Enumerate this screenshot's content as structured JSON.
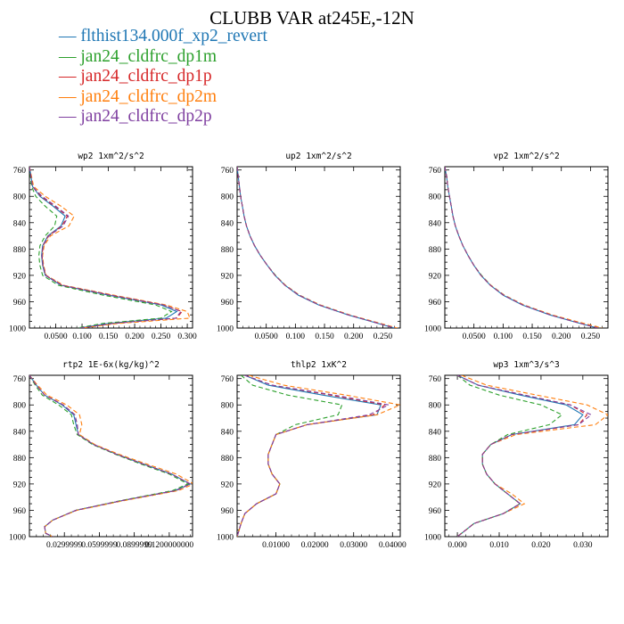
{
  "title": "CLUBB VAR at245E,-12N",
  "legend": [
    {
      "label": "flthist134.000f_xp2_revert",
      "color": "#1f77b4",
      "dash": ""
    },
    {
      "label": "jan24_cldfrc_dp1m",
      "color": "#2ca02c",
      "dash": "5,3"
    },
    {
      "label": "jan24_cldfrc_dp1p",
      "color": "#d62728",
      "dash": "5,3"
    },
    {
      "label": "jan24_cldfrc_dp2m",
      "color": "#ff7f0e",
      "dash": "5,3"
    },
    {
      "label": "jan24_cldfrc_dp2p",
      "color": "#7f3fa0",
      "dash": "5,3"
    }
  ],
  "chart_data": [
    {
      "type": "line",
      "title": "wp2  1xm^2/s^2",
      "ylim": [
        1000,
        755
      ],
      "xlim": [
        0.0,
        0.31
      ],
      "yticks": [
        "760",
        "800",
        "840",
        "880",
        "920",
        "960",
        "1000"
      ],
      "xticks": [
        "0.0500",
        "0.100",
        "0.150",
        "0.200",
        "0.250",
        "0.300"
      ],
      "x_tick_values": [
        0.05,
        0.1,
        0.15,
        0.2,
        0.25,
        0.3
      ],
      "y": [
        755,
        770,
        785,
        800,
        815,
        830,
        845,
        860,
        875,
        890,
        905,
        920,
        935,
        950,
        965,
        975,
        985,
        993,
        1000
      ],
      "series": [
        {
          "values": [
            0.0,
            0.003,
            0.006,
            0.02,
            0.045,
            0.068,
            0.06,
            0.035,
            0.025,
            0.023,
            0.025,
            0.03,
            0.06,
            0.15,
            0.25,
            0.28,
            0.26,
            0.15,
            0.095
          ]
        },
        {
          "values": [
            0.0,
            0.002,
            0.004,
            0.012,
            0.03,
            0.052,
            0.048,
            0.03,
            0.02,
            0.018,
            0.02,
            0.025,
            0.055,
            0.14,
            0.24,
            0.27,
            0.25,
            0.14,
            0.09
          ]
        },
        {
          "values": [
            0.0,
            0.003,
            0.006,
            0.022,
            0.048,
            0.072,
            0.062,
            0.036,
            0.026,
            0.024,
            0.026,
            0.031,
            0.062,
            0.155,
            0.255,
            0.29,
            0.28,
            0.16,
            0.097
          ]
        },
        {
          "values": [
            0.0,
            0.004,
            0.008,
            0.03,
            0.06,
            0.085,
            0.075,
            0.04,
            0.028,
            0.025,
            0.027,
            0.032,
            0.065,
            0.16,
            0.26,
            0.3,
            0.305,
            0.17,
            0.1
          ]
        },
        {
          "values": [
            0.0,
            0.003,
            0.006,
            0.024,
            0.05,
            0.074,
            0.064,
            0.037,
            0.026,
            0.024,
            0.026,
            0.031,
            0.062,
            0.155,
            0.255,
            0.288,
            0.278,
            0.158,
            0.097
          ]
        }
      ]
    },
    {
      "type": "line",
      "title": "up2  1xm^2/s^2",
      "ylim": [
        1000,
        755
      ],
      "xlim": [
        0.0,
        0.28
      ],
      "yticks": [
        "760",
        "800",
        "840",
        "880",
        "920",
        "960",
        "1000"
      ],
      "xticks": [
        "0.0500",
        "0.100",
        "0.150",
        "0.200",
        "0.250"
      ],
      "x_tick_values": [
        0.05,
        0.1,
        0.15,
        0.2,
        0.25
      ],
      "y": [
        755,
        770,
        785,
        800,
        815,
        830,
        845,
        860,
        875,
        890,
        905,
        920,
        935,
        950,
        965,
        980,
        990,
        1000
      ],
      "series": [
        {
          "values": [
            0.0,
            0.002,
            0.004,
            0.006,
            0.009,
            0.012,
            0.016,
            0.022,
            0.03,
            0.04,
            0.052,
            0.065,
            0.082,
            0.105,
            0.14,
            0.19,
            0.23,
            0.27
          ]
        },
        {
          "values": [
            0.0,
            0.002,
            0.004,
            0.006,
            0.009,
            0.012,
            0.016,
            0.022,
            0.03,
            0.04,
            0.052,
            0.066,
            0.083,
            0.107,
            0.142,
            0.192,
            0.232,
            0.272
          ]
        },
        {
          "values": [
            0.0,
            0.002,
            0.004,
            0.006,
            0.009,
            0.012,
            0.016,
            0.022,
            0.03,
            0.04,
            0.052,
            0.065,
            0.082,
            0.106,
            0.141,
            0.191,
            0.231,
            0.271
          ]
        },
        {
          "values": [
            0.0,
            0.002,
            0.004,
            0.006,
            0.009,
            0.012,
            0.016,
            0.022,
            0.03,
            0.04,
            0.052,
            0.065,
            0.083,
            0.107,
            0.143,
            0.193,
            0.234,
            0.275
          ]
        },
        {
          "values": [
            0.0,
            0.002,
            0.004,
            0.006,
            0.009,
            0.012,
            0.016,
            0.022,
            0.03,
            0.04,
            0.052,
            0.065,
            0.082,
            0.106,
            0.141,
            0.191,
            0.231,
            0.271
          ]
        }
      ]
    },
    {
      "type": "line",
      "title": "vp2  1xm^2/s^2",
      "ylim": [
        1000,
        755
      ],
      "xlim": [
        0.0,
        0.28
      ],
      "yticks": [
        "760",
        "800",
        "840",
        "880",
        "920",
        "960",
        "1000"
      ],
      "xticks": [
        "0.0500",
        "0.100",
        "0.150",
        "0.200",
        "0.250"
      ],
      "x_tick_values": [
        0.05,
        0.1,
        0.15,
        0.2,
        0.25
      ],
      "y": [
        755,
        770,
        785,
        800,
        815,
        830,
        845,
        860,
        875,
        890,
        905,
        920,
        935,
        950,
        965,
        980,
        990,
        1000
      ],
      "series": [
        {
          "values": [
            0.0,
            0.003,
            0.005,
            0.008,
            0.011,
            0.014,
            0.018,
            0.024,
            0.031,
            0.04,
            0.05,
            0.062,
            0.078,
            0.1,
            0.133,
            0.18,
            0.22,
            0.262
          ]
        },
        {
          "values": [
            0.0,
            0.003,
            0.005,
            0.008,
            0.011,
            0.014,
            0.018,
            0.024,
            0.031,
            0.04,
            0.05,
            0.063,
            0.079,
            0.102,
            0.135,
            0.182,
            0.222,
            0.265
          ]
        },
        {
          "values": [
            0.0,
            0.003,
            0.005,
            0.008,
            0.011,
            0.014,
            0.018,
            0.024,
            0.031,
            0.04,
            0.05,
            0.062,
            0.078,
            0.101,
            0.134,
            0.181,
            0.221,
            0.263
          ]
        },
        {
          "values": [
            0.0,
            0.003,
            0.005,
            0.008,
            0.011,
            0.014,
            0.018,
            0.024,
            0.031,
            0.04,
            0.05,
            0.062,
            0.079,
            0.102,
            0.136,
            0.184,
            0.226,
            0.27
          ]
        },
        {
          "values": [
            0.0,
            0.003,
            0.005,
            0.008,
            0.011,
            0.014,
            0.018,
            0.024,
            0.031,
            0.04,
            0.05,
            0.062,
            0.078,
            0.101,
            0.134,
            0.181,
            0.221,
            0.263
          ]
        }
      ]
    },
    {
      "type": "line",
      "title": "rtp2  1E-6x(kg/kg)^2",
      "ylim": [
        1000,
        755
      ],
      "xlim": [
        0.0,
        0.14
      ],
      "yticks": [
        "760",
        "800",
        "840",
        "880",
        "920",
        "960",
        "1000"
      ],
      "xticks": [
        "0.0299999",
        "0.0599999",
        "0.0899999",
        "0.1200000000"
      ],
      "x_tick_values": [
        0.03,
        0.06,
        0.09,
        0.12
      ],
      "y": [
        755,
        770,
        785,
        800,
        815,
        830,
        845,
        860,
        875,
        890,
        905,
        920,
        930,
        945,
        960,
        975,
        985,
        995,
        1000
      ],
      "series": [
        {
          "values": [
            0.0,
            0.006,
            0.013,
            0.028,
            0.038,
            0.04,
            0.042,
            0.055,
            0.075,
            0.098,
            0.122,
            0.138,
            0.125,
            0.08,
            0.04,
            0.02,
            0.013,
            0.014,
            0.02
          ]
        },
        {
          "values": [
            0.0,
            0.005,
            0.011,
            0.025,
            0.036,
            0.038,
            0.041,
            0.054,
            0.074,
            0.096,
            0.12,
            0.136,
            0.123,
            0.079,
            0.04,
            0.02,
            0.013,
            0.014,
            0.02
          ]
        },
        {
          "values": [
            0.0,
            0.006,
            0.013,
            0.029,
            0.039,
            0.041,
            0.042,
            0.055,
            0.075,
            0.098,
            0.122,
            0.138,
            0.126,
            0.08,
            0.04,
            0.02,
            0.013,
            0.014,
            0.02
          ]
        },
        {
          "values": [
            0.0,
            0.007,
            0.015,
            0.032,
            0.043,
            0.045,
            0.043,
            0.056,
            0.077,
            0.101,
            0.126,
            0.141,
            0.128,
            0.082,
            0.041,
            0.02,
            0.013,
            0.014,
            0.02
          ]
        },
        {
          "values": [
            0.0,
            0.006,
            0.013,
            0.029,
            0.039,
            0.041,
            0.042,
            0.055,
            0.075,
            0.098,
            0.122,
            0.138,
            0.126,
            0.08,
            0.04,
            0.02,
            0.013,
            0.014,
            0.02
          ]
        }
      ]
    },
    {
      "type": "line",
      "title": "thlp2  1xK^2",
      "ylim": [
        1000,
        755
      ],
      "xlim": [
        0.0,
        0.042
      ],
      "yticks": [
        "760",
        "800",
        "840",
        "880",
        "920",
        "960",
        "1000"
      ],
      "xticks": [
        "0.01000",
        "0.02000",
        "0.03000",
        "0.04000"
      ],
      "x_tick_values": [
        0.01,
        0.02,
        0.03,
        0.04
      ],
      "y": [
        755,
        770,
        785,
        800,
        815,
        830,
        845,
        860,
        875,
        890,
        905,
        920,
        935,
        950,
        965,
        980,
        1000
      ],
      "series": [
        {
          "values": [
            0.002,
            0.008,
            0.022,
            0.037,
            0.036,
            0.018,
            0.01,
            0.009,
            0.008,
            0.008,
            0.009,
            0.011,
            0.01,
            0.005,
            0.002,
            0.001,
            0.0
          ]
        },
        {
          "values": [
            0.001,
            0.004,
            0.013,
            0.027,
            0.026,
            0.015,
            0.01,
            0.009,
            0.008,
            0.008,
            0.009,
            0.011,
            0.01,
            0.005,
            0.002,
            0.001,
            0.0
          ]
        },
        {
          "values": [
            0.002,
            0.009,
            0.024,
            0.038,
            0.035,
            0.018,
            0.01,
            0.009,
            0.008,
            0.008,
            0.009,
            0.011,
            0.01,
            0.005,
            0.002,
            0.001,
            0.0
          ]
        },
        {
          "values": [
            0.003,
            0.012,
            0.028,
            0.042,
            0.036,
            0.018,
            0.01,
            0.009,
            0.008,
            0.008,
            0.009,
            0.011,
            0.01,
            0.005,
            0.002,
            0.001,
            0.0
          ]
        },
        {
          "values": [
            0.002,
            0.009,
            0.025,
            0.039,
            0.034,
            0.018,
            0.01,
            0.009,
            0.008,
            0.008,
            0.009,
            0.011,
            0.01,
            0.005,
            0.002,
            0.001,
            0.0
          ]
        }
      ]
    },
    {
      "type": "line",
      "title": "wp3  1xm^3/s^3",
      "ylim": [
        1000,
        755
      ],
      "xlim": [
        -0.003,
        0.036
      ],
      "yticks": [
        "760",
        "800",
        "840",
        "880",
        "920",
        "960",
        "1000"
      ],
      "xticks": [
        "0.000",
        "0.010",
        "0.020",
        "0.030"
      ],
      "x_tick_values": [
        0.0,
        0.01,
        0.02,
        0.03
      ],
      "y": [
        755,
        770,
        785,
        800,
        815,
        830,
        845,
        860,
        875,
        890,
        905,
        920,
        935,
        950,
        965,
        980,
        1000
      ],
      "series": [
        {
          "values": [
            0.0,
            0.005,
            0.015,
            0.026,
            0.03,
            0.028,
            0.013,
            0.008,
            0.006,
            0.006,
            0.007,
            0.009,
            0.012,
            0.015,
            0.011,
            0.004,
            0.0
          ]
        },
        {
          "values": [
            0.0,
            0.003,
            0.01,
            0.02,
            0.025,
            0.022,
            0.012,
            0.008,
            0.006,
            0.006,
            0.007,
            0.009,
            0.012,
            0.015,
            0.011,
            0.004,
            0.0
          ]
        },
        {
          "values": [
            0.0,
            0.005,
            0.016,
            0.027,
            0.031,
            0.029,
            0.013,
            0.008,
            0.006,
            0.006,
            0.007,
            0.009,
            0.012,
            0.015,
            0.011,
            0.004,
            0.0
          ]
        },
        {
          "values": [
            0.001,
            0.007,
            0.019,
            0.031,
            0.036,
            0.033,
            0.014,
            0.008,
            0.006,
            0.006,
            0.007,
            0.009,
            0.013,
            0.016,
            0.011,
            0.004,
            0.0
          ]
        },
        {
          "values": [
            0.0,
            0.005,
            0.016,
            0.027,
            0.032,
            0.029,
            0.013,
            0.008,
            0.006,
            0.006,
            0.007,
            0.009,
            0.012,
            0.015,
            0.011,
            0.004,
            0.0
          ]
        }
      ]
    }
  ]
}
